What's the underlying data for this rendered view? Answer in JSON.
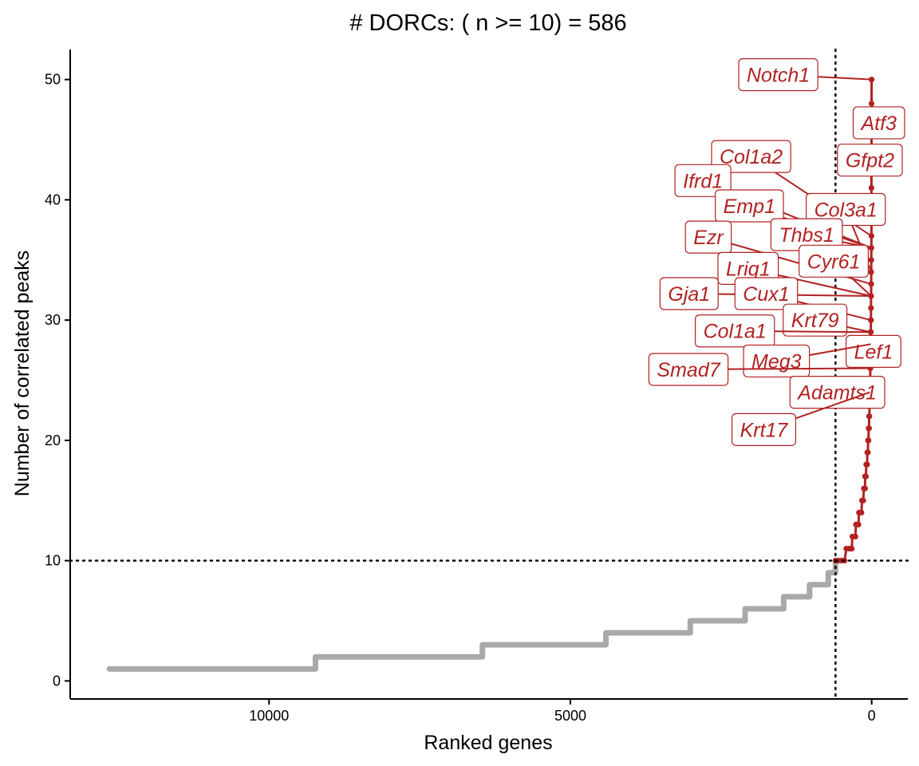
{
  "chart_data": {
    "type": "scatter",
    "title": "# DORCs: ( n >= 10) = 586",
    "xlabel": "Ranked genes",
    "ylabel": "Number of correlated peaks",
    "x_reversed": true,
    "xlim": [
      13300,
      -600
    ],
    "ylim": [
      -1.5,
      52.5
    ],
    "x_ticks": [
      10000,
      5000,
      0
    ],
    "x_tick_labels": [
      "10000",
      "5000",
      "0"
    ],
    "y_ticks": [
      0,
      10,
      20,
      30,
      40,
      50
    ],
    "y_tick_labels": [
      "0",
      "10",
      "20",
      "30",
      "40",
      "50"
    ],
    "threshold_y": 10,
    "threshold_x": 600,
    "grid": false,
    "colors": {
      "background": "#ffffff",
      "below_threshold": "#A9A9A9",
      "dorc": "#B22222",
      "reference_line": "#000000"
    },
    "below_threshold_steps": [
      {
        "y": 1,
        "x_from": 12650,
        "x_to": 9230
      },
      {
        "y": 2,
        "x_from": 9230,
        "x_to": 6460
      },
      {
        "y": 3,
        "x_from": 6460,
        "x_to": 4410
      },
      {
        "y": 4,
        "x_from": 4410,
        "x_to": 3010
      },
      {
        "y": 5,
        "x_from": 3010,
        "x_to": 2100
      },
      {
        "y": 6,
        "x_from": 2100,
        "x_to": 1460
      },
      {
        "y": 7,
        "x_from": 1460,
        "x_to": 1030
      },
      {
        "y": 8,
        "x_from": 1030,
        "x_to": 720
      },
      {
        "y": 9,
        "x_from": 720,
        "x_to": 600
      }
    ],
    "dorc_points": [
      {
        "x": 600,
        "y": 10
      },
      {
        "x": 550,
        "y": 10
      },
      {
        "x": 500,
        "y": 10
      },
      {
        "x": 450,
        "y": 10
      },
      {
        "x": 420,
        "y": 11
      },
      {
        "x": 370,
        "y": 11
      },
      {
        "x": 330,
        "y": 11
      },
      {
        "x": 320,
        "y": 12
      },
      {
        "x": 270,
        "y": 12
      },
      {
        "x": 260,
        "y": 13
      },
      {
        "x": 220,
        "y": 13
      },
      {
        "x": 210,
        "y": 14
      },
      {
        "x": 170,
        "y": 14
      },
      {
        "x": 160,
        "y": 15
      },
      {
        "x": 140,
        "y": 15
      },
      {
        "x": 130,
        "y": 16
      },
      {
        "x": 110,
        "y": 16
      },
      {
        "x": 110,
        "y": 17
      },
      {
        "x": 95,
        "y": 17
      },
      {
        "x": 90,
        "y": 18
      },
      {
        "x": 75,
        "y": 18
      },
      {
        "x": 72,
        "y": 19
      },
      {
        "x": 62,
        "y": 19
      },
      {
        "x": 60,
        "y": 20
      },
      {
        "x": 52,
        "y": 20
      },
      {
        "x": 50,
        "y": 21
      },
      {
        "x": 44,
        "y": 21
      },
      {
        "x": 42,
        "y": 22
      },
      {
        "x": 38,
        "y": 22
      },
      {
        "x": 36,
        "y": 23
      },
      {
        "x": 32,
        "y": 23
      },
      {
        "x": 31,
        "y": 24
      },
      {
        "x": 28,
        "y": 24
      },
      {
        "x": 27,
        "y": 25
      },
      {
        "x": 24,
        "y": 25
      },
      {
        "x": 23,
        "y": 26
      },
      {
        "x": 21,
        "y": 26
      },
      {
        "x": 20,
        "y": 27
      },
      {
        "x": 18,
        "y": 27
      },
      {
        "x": 17,
        "y": 28
      },
      {
        "x": 16,
        "y": 28
      },
      {
        "x": 15,
        "y": 29
      },
      {
        "x": 14,
        "y": 29
      },
      {
        "x": 13,
        "y": 30
      },
      {
        "x": 12,
        "y": 30
      },
      {
        "x": 11,
        "y": 31
      },
      {
        "x": 10,
        "y": 32
      },
      {
        "x": 9,
        "y": 32
      },
      {
        "x": 8,
        "y": 33
      },
      {
        "x": 7,
        "y": 34
      },
      {
        "x": 6,
        "y": 35
      },
      {
        "x": 5,
        "y": 36
      },
      {
        "x": 4,
        "y": 37
      },
      {
        "x": 3,
        "y": 41
      },
      {
        "x": 2,
        "y": 48
      },
      {
        "x": 1,
        "y": 50
      }
    ],
    "labels": [
      {
        "gene": "Notch1",
        "x": 1,
        "y": 50,
        "label_x": 1550,
        "label_y": 50.4
      },
      {
        "gene": "Atf3",
        "x": 2,
        "y": 48,
        "label_x": -120,
        "label_y": 46.4
      },
      {
        "gene": "Gfpt2",
        "x": 3,
        "y": 41,
        "label_x": 30,
        "label_y": 43.3
      },
      {
        "gene": "Col1a2",
        "x": 4,
        "y": 37,
        "label_x": 2000,
        "label_y": 43.6
      },
      {
        "gene": "Ifrd1",
        "x": 6,
        "y": 36,
        "label_x": 2800,
        "label_y": 41.6
      },
      {
        "gene": "Emp1",
        "x": 5,
        "y": 36,
        "label_x": 2030,
        "label_y": 39.5
      },
      {
        "gene": "Col3a1",
        "x": 7,
        "y": 34,
        "label_x": 430,
        "label_y": 39.2
      },
      {
        "gene": "Thbs1",
        "x": 5,
        "y": 36,
        "label_x": 1080,
        "label_y": 37.1
      },
      {
        "gene": "Ezr",
        "x": 8,
        "y": 33,
        "label_x": 2710,
        "label_y": 36.9
      },
      {
        "gene": "Cyr61",
        "x": 9,
        "y": 32,
        "label_x": 630,
        "label_y": 34.9
      },
      {
        "gene": "Lrig1",
        "x": 10,
        "y": 32,
        "label_x": 2050,
        "label_y": 34.3
      },
      {
        "gene": "Gja1",
        "x": 11,
        "y": 32,
        "label_x": 3030,
        "label_y": 32.2
      },
      {
        "gene": "Cux1",
        "x": 12,
        "y": 30,
        "label_x": 1750,
        "label_y": 32.2
      },
      {
        "gene": "Krt79",
        "x": 13,
        "y": 29,
        "label_x": 940,
        "label_y": 30.0
      },
      {
        "gene": "Col1a1",
        "x": 14,
        "y": 29,
        "label_x": 2270,
        "label_y": 29.1
      },
      {
        "gene": "Lef1",
        "x": 16,
        "y": 27,
        "label_x": -30,
        "label_y": 27.4
      },
      {
        "gene": "Meg3",
        "x": 15,
        "y": 28,
        "label_x": 1580,
        "label_y": 26.6
      },
      {
        "gene": "Smad7",
        "x": 20,
        "y": 26,
        "label_x": 3040,
        "label_y": 25.9
      },
      {
        "gene": "Adamts1",
        "x": 25,
        "y": 25,
        "label_x": 570,
        "label_y": 24.0
      },
      {
        "gene": "Krt17",
        "x": 30,
        "y": 24,
        "label_x": 1790,
        "label_y": 20.9
      }
    ]
  }
}
